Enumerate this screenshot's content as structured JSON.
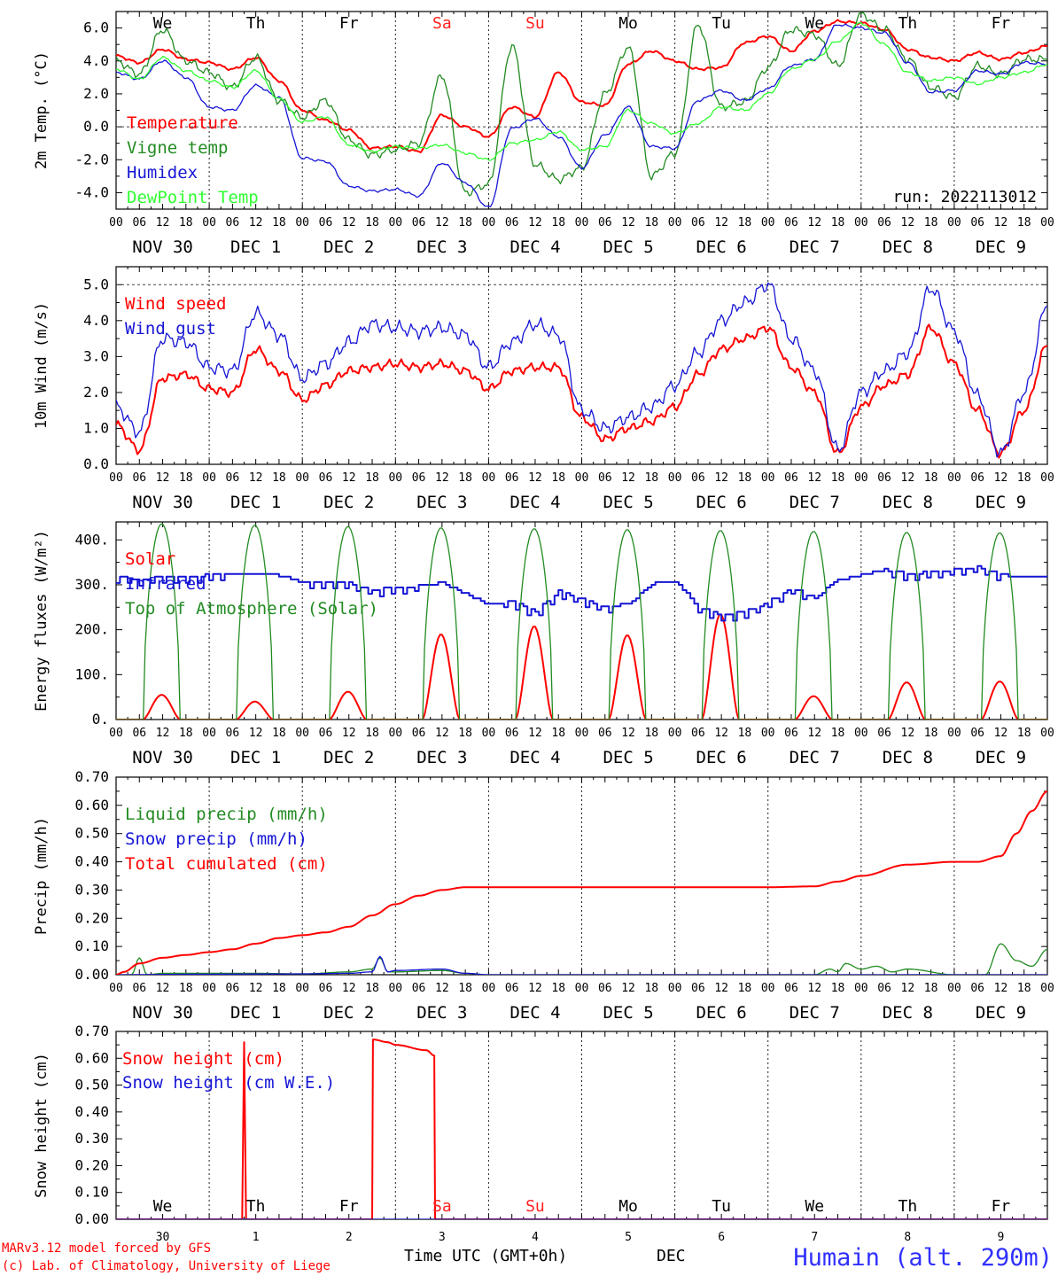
{
  "chart_data": [
    {
      "type": "line",
      "ylabel": "2m Temp. (°C)",
      "ylim": [
        -5.0,
        7.0
      ],
      "yticks": [
        6.0,
        4.0,
        2.0,
        0.0,
        -2.0,
        -4.0
      ],
      "ytick_labels": [
        "6.0",
        "4.0",
        "2.0",
        "0.0",
        "-2.0",
        "-4.0"
      ],
      "ref_line": 0.0,
      "day_labels": [
        "We",
        "Th",
        "Fr",
        "Sa",
        "Su",
        "Mo",
        "Tu",
        "We",
        "Th",
        "Fr"
      ],
      "weekend_color": "#ff2020",
      "annotation": "run: 2022113012",
      "series": [
        {
          "name": "Temperature",
          "color": "#ff0000",
          "width": 2,
          "x": [
            0,
            6,
            12,
            18,
            24,
            30,
            36,
            42,
            48,
            54,
            60,
            66,
            72,
            78,
            84,
            90,
            96,
            102,
            108,
            114,
            120,
            126,
            132,
            138,
            144,
            150,
            156,
            162,
            168,
            174,
            180,
            186,
            192,
            198,
            204,
            210,
            216,
            222,
            228,
            234,
            240
          ],
          "y": [
            4.3,
            3.9,
            4.7,
            4.1,
            3.9,
            3.5,
            4.2,
            2.8,
            1.0,
            0.4,
            -0.2,
            -1.3,
            -1.2,
            -1.5,
            0.7,
            0.0,
            -0.6,
            1.2,
            0.6,
            3.3,
            1.5,
            1.3,
            3.8,
            4.6,
            4.0,
            3.5,
            3.6,
            5.1,
            5.5,
            4.6,
            5.8,
            6.4,
            6.3,
            5.9,
            4.7,
            4.2,
            4.0,
            4.5,
            4.1,
            4.5,
            4.9
          ]
        },
        {
          "name": "Vigne temp",
          "color": "#228b22",
          "width": 1.3,
          "x": [
            0,
            6,
            12,
            18,
            24,
            30,
            36,
            42,
            48,
            54,
            60,
            66,
            72,
            78,
            84,
            90,
            96,
            102,
            108,
            114,
            120,
            126,
            132,
            138,
            144,
            150,
            156,
            162,
            168,
            174,
            180,
            186,
            192,
            198,
            204,
            210,
            216,
            222,
            228,
            234,
            240
          ],
          "y": [
            4.0,
            3.2,
            5.9,
            4.0,
            3.3,
            2.4,
            4.2,
            1.6,
            0.6,
            1.6,
            -0.8,
            -1.7,
            -1.4,
            -1.0,
            3.1,
            -4.0,
            -3.5,
            4.9,
            -2.3,
            -3.2,
            -2.5,
            2.0,
            4.8,
            -3.0,
            -1.6,
            6.2,
            1.2,
            1.5,
            3.6,
            5.9,
            5.6,
            3.7,
            6.8,
            5.9,
            4.1,
            2.4,
            1.8,
            3.7,
            3.2,
            4.1,
            4.1
          ]
        },
        {
          "name": "Humidex",
          "color": "#1515d5",
          "width": 1.3,
          "x": [
            0,
            6,
            12,
            18,
            24,
            30,
            36,
            42,
            48,
            54,
            60,
            66,
            72,
            78,
            84,
            90,
            96,
            102,
            108,
            114,
            120,
            126,
            132,
            138,
            144,
            150,
            156,
            162,
            168,
            174,
            180,
            186,
            192,
            198,
            204,
            210,
            216,
            222,
            228,
            234,
            240
          ],
          "y": [
            3.3,
            2.9,
            4.0,
            3.0,
            1.2,
            1.0,
            2.5,
            1.8,
            -1.9,
            -2.1,
            -3.6,
            -3.9,
            -3.8,
            -4.2,
            -2.2,
            -3.4,
            -4.9,
            -0.1,
            0.5,
            -0.6,
            -2.5,
            -0.5,
            1.2,
            -1.2,
            -1.3,
            1.6,
            2.2,
            1.6,
            2.3,
            3.7,
            4.1,
            6.2,
            6.0,
            5.7,
            3.9,
            2.1,
            2.2,
            3.4,
            3.2,
            3.9,
            3.8
          ]
        },
        {
          "name": "DewPoint Temp",
          "color": "#30ff30",
          "width": 1.3,
          "x": [
            0,
            6,
            12,
            18,
            24,
            30,
            36,
            42,
            48,
            54,
            60,
            66,
            72,
            78,
            84,
            90,
            96,
            102,
            108,
            114,
            120,
            126,
            132,
            138,
            144,
            150,
            156,
            162,
            168,
            174,
            180,
            186,
            192,
            198,
            204,
            210,
            216,
            222,
            228,
            234,
            240
          ],
          "y": [
            3.5,
            2.9,
            4.2,
            3.4,
            2.8,
            2.4,
            3.4,
            1.7,
            0.3,
            0.6,
            -1.1,
            -1.5,
            -1.2,
            -1.3,
            -1.1,
            -1.6,
            -2.0,
            -1.0,
            -0.8,
            -0.3,
            -1.4,
            -1.2,
            1.0,
            0.2,
            -0.4,
            0.2,
            1.2,
            1.0,
            2.0,
            3.5,
            4.1,
            5.2,
            6.3,
            5.0,
            3.3,
            2.8,
            3.0,
            2.6,
            3.0,
            3.3,
            3.8
          ]
        }
      ]
    },
    {
      "type": "line",
      "ylabel": "10m Wind (m/s)",
      "ylim": [
        0.0,
        5.5
      ],
      "yticks": [
        5.0,
        4.0,
        3.0,
        2.0,
        1.0,
        0.0
      ],
      "ytick_labels": [
        "5.0",
        "4.0",
        "3.0",
        "2.0",
        "1.0",
        "0.0"
      ],
      "ref_line": 5.0,
      "series": [
        {
          "name": "Wind speed",
          "color": "#ff0000",
          "width": 2,
          "x": [
            0,
            6,
            12,
            18,
            24,
            30,
            36,
            42,
            48,
            54,
            60,
            66,
            72,
            78,
            84,
            90,
            96,
            102,
            108,
            114,
            120,
            126,
            132,
            138,
            144,
            150,
            156,
            162,
            168,
            174,
            180,
            186,
            192,
            198,
            204,
            210,
            216,
            222,
            228,
            234,
            240
          ],
          "y": [
            1.1,
            0.4,
            2.4,
            2.5,
            2.1,
            2.0,
            3.2,
            2.6,
            1.8,
            2.2,
            2.6,
            2.7,
            2.8,
            2.7,
            2.8,
            2.6,
            2.1,
            2.6,
            2.7,
            2.7,
            1.3,
            0.7,
            1.0,
            1.2,
            1.6,
            2.5,
            3.2,
            3.5,
            3.8,
            2.7,
            2.0,
            0.3,
            1.6,
            2.2,
            2.5,
            3.8,
            2.8,
            1.5,
            0.3,
            1.5,
            3.3
          ]
        },
        {
          "name": "Wind gust",
          "color": "#1515d5",
          "width": 1.3,
          "x": [
            0,
            6,
            12,
            18,
            24,
            30,
            36,
            42,
            48,
            54,
            60,
            66,
            72,
            78,
            84,
            90,
            96,
            102,
            108,
            114,
            120,
            126,
            132,
            138,
            144,
            150,
            156,
            162,
            168,
            174,
            180,
            186,
            192,
            198,
            204,
            210,
            216,
            222,
            228,
            234,
            240
          ],
          "y": [
            1.6,
            0.9,
            3.5,
            3.4,
            2.7,
            2.6,
            4.2,
            3.6,
            2.4,
            2.8,
            3.4,
            3.9,
            3.8,
            3.7,
            3.8,
            3.6,
            2.7,
            3.4,
            3.9,
            3.6,
            1.5,
            1.0,
            1.3,
            1.6,
            2.2,
            3.1,
            4.0,
            4.5,
            5.0,
            3.5,
            2.6,
            0.4,
            2.0,
            2.6,
            3.1,
            4.9,
            3.7,
            1.9,
            0.3,
            2.0,
            4.4
          ]
        }
      ]
    },
    {
      "type": "line",
      "ylabel": "Energy fluxes (W/m²)",
      "ylim": [
        0,
        440
      ],
      "yticks": [
        400,
        300,
        200,
        100,
        0
      ],
      "ytick_labels": [
        "400.",
        "300.",
        "200.",
        "100.",
        "0."
      ],
      "series": [
        {
          "name": "Solar",
          "color": "#ff0000",
          "width": 2,
          "daily_peak": [
            55,
            40,
            62,
            190,
            208,
            188,
            235,
            52,
            83,
            85
          ]
        },
        {
          "name": "Infrared",
          "color": "#1515d5",
          "width": 2,
          "x": [
            0,
            6,
            12,
            18,
            24,
            30,
            36,
            42,
            48,
            54,
            60,
            66,
            72,
            78,
            84,
            90,
            96,
            102,
            108,
            114,
            120,
            126,
            132,
            138,
            144,
            150,
            156,
            162,
            168,
            174,
            180,
            186,
            192,
            198,
            204,
            210,
            216,
            222,
            228,
            234,
            240
          ],
          "y": [
            318,
            312,
            320,
            318,
            322,
            326,
            326,
            320,
            305,
            305,
            303,
            290,
            292,
            298,
            305,
            280,
            255,
            265,
            240,
            285,
            270,
            250,
            258,
            302,
            308,
            250,
            232,
            240,
            262,
            292,
            272,
            310,
            322,
            334,
            325,
            328,
            335,
            340,
            323,
            315,
            321
          ]
        },
        {
          "name": "Top of Atmosphere (Solar)",
          "color": "#228b22",
          "width": 1.3,
          "daily_peak": [
            436,
            433,
            430,
            427,
            425,
            423,
            421,
            419,
            417,
            416
          ]
        }
      ]
    },
    {
      "type": "line",
      "ylabel": "Precip (mm/h)",
      "ylim": [
        0.0,
        0.7
      ],
      "yticks": [
        0.7,
        0.6,
        0.5,
        0.4,
        0.3,
        0.2,
        0.1,
        0.0
      ],
      "ytick_labels": [
        "0.70",
        "0.60",
        "0.50",
        "0.40",
        "0.30",
        "0.20",
        "0.10",
        "0.00"
      ],
      "series": [
        {
          "name": "Liquid precip (mm/h)",
          "color": "#228b22",
          "width": 1.3,
          "x": [
            0,
            4,
            6,
            8,
            12,
            24,
            36,
            48,
            60,
            66,
            68,
            70,
            72,
            84,
            90,
            96,
            180,
            184,
            186,
            188,
            192,
            196,
            200,
            204,
            216,
            224,
            228,
            232,
            236,
            240
          ],
          "y": [
            0,
            0,
            0.06,
            0,
            0.005,
            0.005,
            0.005,
            0.003,
            0.01,
            0.02,
            0.06,
            0.01,
            0.01,
            0.015,
            0.005,
            0,
            0,
            0.02,
            0.01,
            0.04,
            0.02,
            0.03,
            0.01,
            0.02,
            0,
            0,
            0.11,
            0.05,
            0.03,
            0.09
          ]
        },
        {
          "name": "Snow precip (mm/h)",
          "color": "#1515d5",
          "width": 1.3,
          "x": [
            0,
            24,
            48,
            60,
            66,
            68,
            70,
            72,
            84,
            90,
            96,
            240
          ],
          "y": [
            0,
            0.002,
            0.003,
            0.005,
            0.01,
            0.065,
            0.01,
            0.015,
            0.02,
            0.005,
            0,
            0
          ]
        },
        {
          "name": "Total cumulated (cm)",
          "color": "#ff0000",
          "width": 2,
          "x": [
            0,
            2,
            6,
            12,
            18,
            24,
            30,
            36,
            42,
            48,
            54,
            60,
            66,
            72,
            78,
            84,
            90,
            96,
            120,
            144,
            168,
            180,
            186,
            192,
            204,
            216,
            222,
            228,
            232,
            236,
            240
          ],
          "y": [
            0,
            0.01,
            0.04,
            0.06,
            0.07,
            0.08,
            0.09,
            0.11,
            0.13,
            0.14,
            0.15,
            0.17,
            0.21,
            0.25,
            0.28,
            0.3,
            0.31,
            0.31,
            0.31,
            0.31,
            0.31,
            0.313,
            0.33,
            0.35,
            0.39,
            0.4,
            0.4,
            0.42,
            0.5,
            0.58,
            0.65
          ]
        }
      ]
    },
    {
      "type": "line",
      "ylabel": "Snow height (cm)",
      "ylim": [
        0.0,
        0.7
      ],
      "yticks": [
        0.7,
        0.6,
        0.5,
        0.4,
        0.3,
        0.2,
        0.1,
        0.0
      ],
      "ytick_labels": [
        "0.70",
        "0.60",
        "0.50",
        "0.40",
        "0.30",
        "0.20",
        "0.10",
        "0.00"
      ],
      "day_labels": [
        "We",
        "Th",
        "Fr",
        "Sa",
        "Su",
        "Mo",
        "Tu",
        "We",
        "Th",
        "Fr"
      ],
      "date_labels": [
        "30",
        "1",
        "2",
        "3",
        "4",
        "5",
        "6",
        "7",
        "8",
        "9"
      ],
      "series": [
        {
          "name": "Snow height (cm)",
          "color": "#ff0000",
          "width": 2,
          "x": [
            0,
            32.5,
            33,
            33.5,
            34,
            66,
            66.2,
            70,
            72,
            80,
            82,
            82.2,
            240
          ],
          "y": [
            0,
            0,
            0.66,
            0,
            0,
            0,
            0.67,
            0.66,
            0.65,
            0.63,
            0.61,
            0,
            0
          ]
        },
        {
          "name": "Snow height (cm W.E.)",
          "color": "#1515d5",
          "width": 1.3,
          "x": [
            0,
            240
          ],
          "y": [
            0,
            0
          ]
        }
      ]
    }
  ],
  "x_axis": {
    "hour_ticks": [
      "00",
      "06",
      "12",
      "18"
    ],
    "hour_tick_end": "00",
    "date_labels": [
      "NOV 30",
      "DEC  1",
      "DEC  2",
      "DEC  3",
      "DEC  4",
      "DEC  5",
      "DEC  6",
      "DEC  7",
      "DEC  8",
      "DEC  9"
    ]
  },
  "footer": {
    "model_text": "MARv3.12 model forced by GFS",
    "copyright_text": "(c) Lab. of Climatology, University of Liege",
    "axis_title": "Time UTC (GMT+0h)",
    "month_label": "DEC",
    "station": "Humain (alt. 290m)",
    "credit_color": "#ff0000",
    "station_color": "#3030ff"
  }
}
